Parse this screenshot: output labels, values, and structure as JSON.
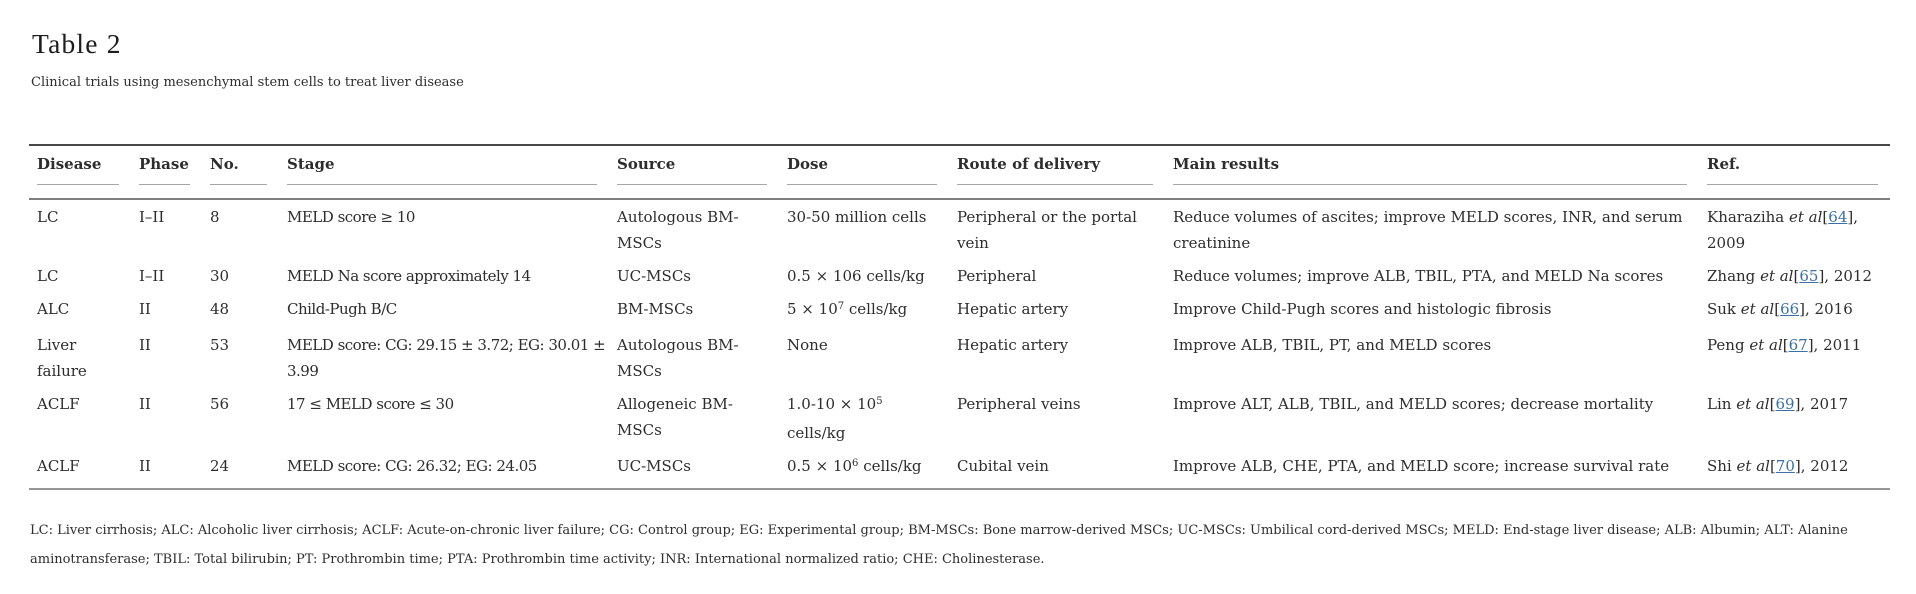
{
  "page": {
    "title": "Table 2",
    "caption": "Clinical trials using mesenchymal stem cells to treat liver disease",
    "footnote_lines": [
      "LC: Liver cirrhosis; ALC: Alcoholic liver cirrhosis; ACLF: Acute-on-chronic liver failure; CG: Control group; EG: Experimental group; BM-MSCs: Bone marrow-derived MSCs; UC-MSCs: Umbilical cord-derived MSCs; MELD: End-stage liver disease; ALB: Albumin; ALT: Alanine",
      "aminotransferase; TBIL: Total bilirubin; PT: Prothrombin time; PTA: Prothrombin time activity; INR: International normalized ratio; CHE: Cholinesterase."
    ]
  },
  "colors": {
    "text": "#2d2d2d",
    "link": "#3b6fa6",
    "rule_dark": "#474747",
    "rule_mid": "#7f7f7f",
    "rule_light": "#a6a6a6"
  },
  "table": {
    "columns": [
      {
        "key": "disease",
        "label": "Disease"
      },
      {
        "key": "phase",
        "label": "Phase"
      },
      {
        "key": "no",
        "label": "No."
      },
      {
        "key": "stage",
        "label": "Stage"
      },
      {
        "key": "source",
        "label": "Source"
      },
      {
        "key": "dose",
        "label": "Dose"
      },
      {
        "key": "route",
        "label": "Route of delivery"
      },
      {
        "key": "results",
        "label": "Main results"
      },
      {
        "key": "ref",
        "label": "Ref."
      }
    ],
    "rows": [
      {
        "disease": "LC",
        "phase": "I–II",
        "no": "8",
        "stage": "MELD score ≥ 10",
        "source": "Autologous BM-MSCs",
        "dose": [
          {
            "t": "30-50 million cells"
          }
        ],
        "route": "Peripheral or the portal vein",
        "results": "Reduce volumes of ascites; improve MELD scores, INR, and serum creatinine",
        "ref": [
          {
            "t": "Kharaziha "
          },
          {
            "i": "et al"
          },
          {
            "t": "["
          },
          {
            "a": "64"
          },
          {
            "t": "], 2009"
          }
        ]
      },
      {
        "disease": "LC",
        "phase": "I–II",
        "no": "30",
        "stage": "MELD Na score approximately 14",
        "source": "UC-MSCs",
        "dose": [
          {
            "t": "0.5 × 106 cells/kg"
          }
        ],
        "route": "Peripheral",
        "results": "Reduce volumes; improve ALB, TBIL, PTA, and MELD Na scores",
        "ref": [
          {
            "t": "Zhang "
          },
          {
            "i": "et al"
          },
          {
            "t": "["
          },
          {
            "a": "65"
          },
          {
            "t": "], 2012"
          }
        ]
      },
      {
        "disease": "ALC",
        "phase": "II",
        "no": "48",
        "stage": "Child-Pugh B/C",
        "source": "BM-MSCs",
        "dose": [
          {
            "t": "5 × 10"
          },
          {
            "sup": "7"
          },
          {
            "t": " cells/kg"
          }
        ],
        "route": "Hepatic artery",
        "results": "Improve Child-Pugh scores and histologic fibrosis",
        "ref": [
          {
            "t": "Suk "
          },
          {
            "i": "et al"
          },
          {
            "t": "["
          },
          {
            "a": "66"
          },
          {
            "t": "], 2016"
          }
        ]
      },
      {
        "disease": "Liver failure",
        "phase": "II",
        "no": "53",
        "stage": "MELD score: CG: 29.15 ± 3.72; EG: 30.01 ± ​3.99",
        "source": "Autologous BM-MSCs",
        "dose": [
          {
            "t": "None"
          }
        ],
        "route": "Hepatic artery",
        "results": "Improve ALB, TBIL, PT, and MELD scores",
        "ref": [
          {
            "t": "Peng "
          },
          {
            "i": "et al"
          },
          {
            "t": "["
          },
          {
            "a": "67"
          },
          {
            "t": "], 2011"
          }
        ]
      },
      {
        "disease": "ACLF",
        "phase": "II",
        "no": "56",
        "stage": "17 ≤ MELD score ≤ 30",
        "source": "Allogeneic BM-MSCs",
        "dose": [
          {
            "t": "1.0-10 × 10"
          },
          {
            "sup": "5"
          },
          {
            "t": " cells/kg"
          }
        ],
        "route": "Peripheral veins",
        "results": "Improve ALT, ALB, TBIL, and MELD scores; decrease mortality",
        "ref": [
          {
            "t": "Lin "
          },
          {
            "i": "et al"
          },
          {
            "t": "["
          },
          {
            "a": "69"
          },
          {
            "t": "], 2017"
          }
        ]
      },
      {
        "disease": "ACLF",
        "phase": "II",
        "no": "24",
        "stage": "MELD score: CG: 26.32; EG: 24.05",
        "source": "UC-MSCs",
        "dose": [
          {
            "t": "0.5 × 10"
          },
          {
            "sup": "6"
          },
          {
            "t": " cells/kg"
          }
        ],
        "route": "Cubital vein",
        "results": "Improve ALB, CHE, PTA, and MELD score; increase survival rate",
        "ref": [
          {
            "t": "Shi "
          },
          {
            "i": "et al"
          },
          {
            "t": "["
          },
          {
            "a": "70"
          },
          {
            "t": "], 2012"
          }
        ]
      }
    ]
  }
}
